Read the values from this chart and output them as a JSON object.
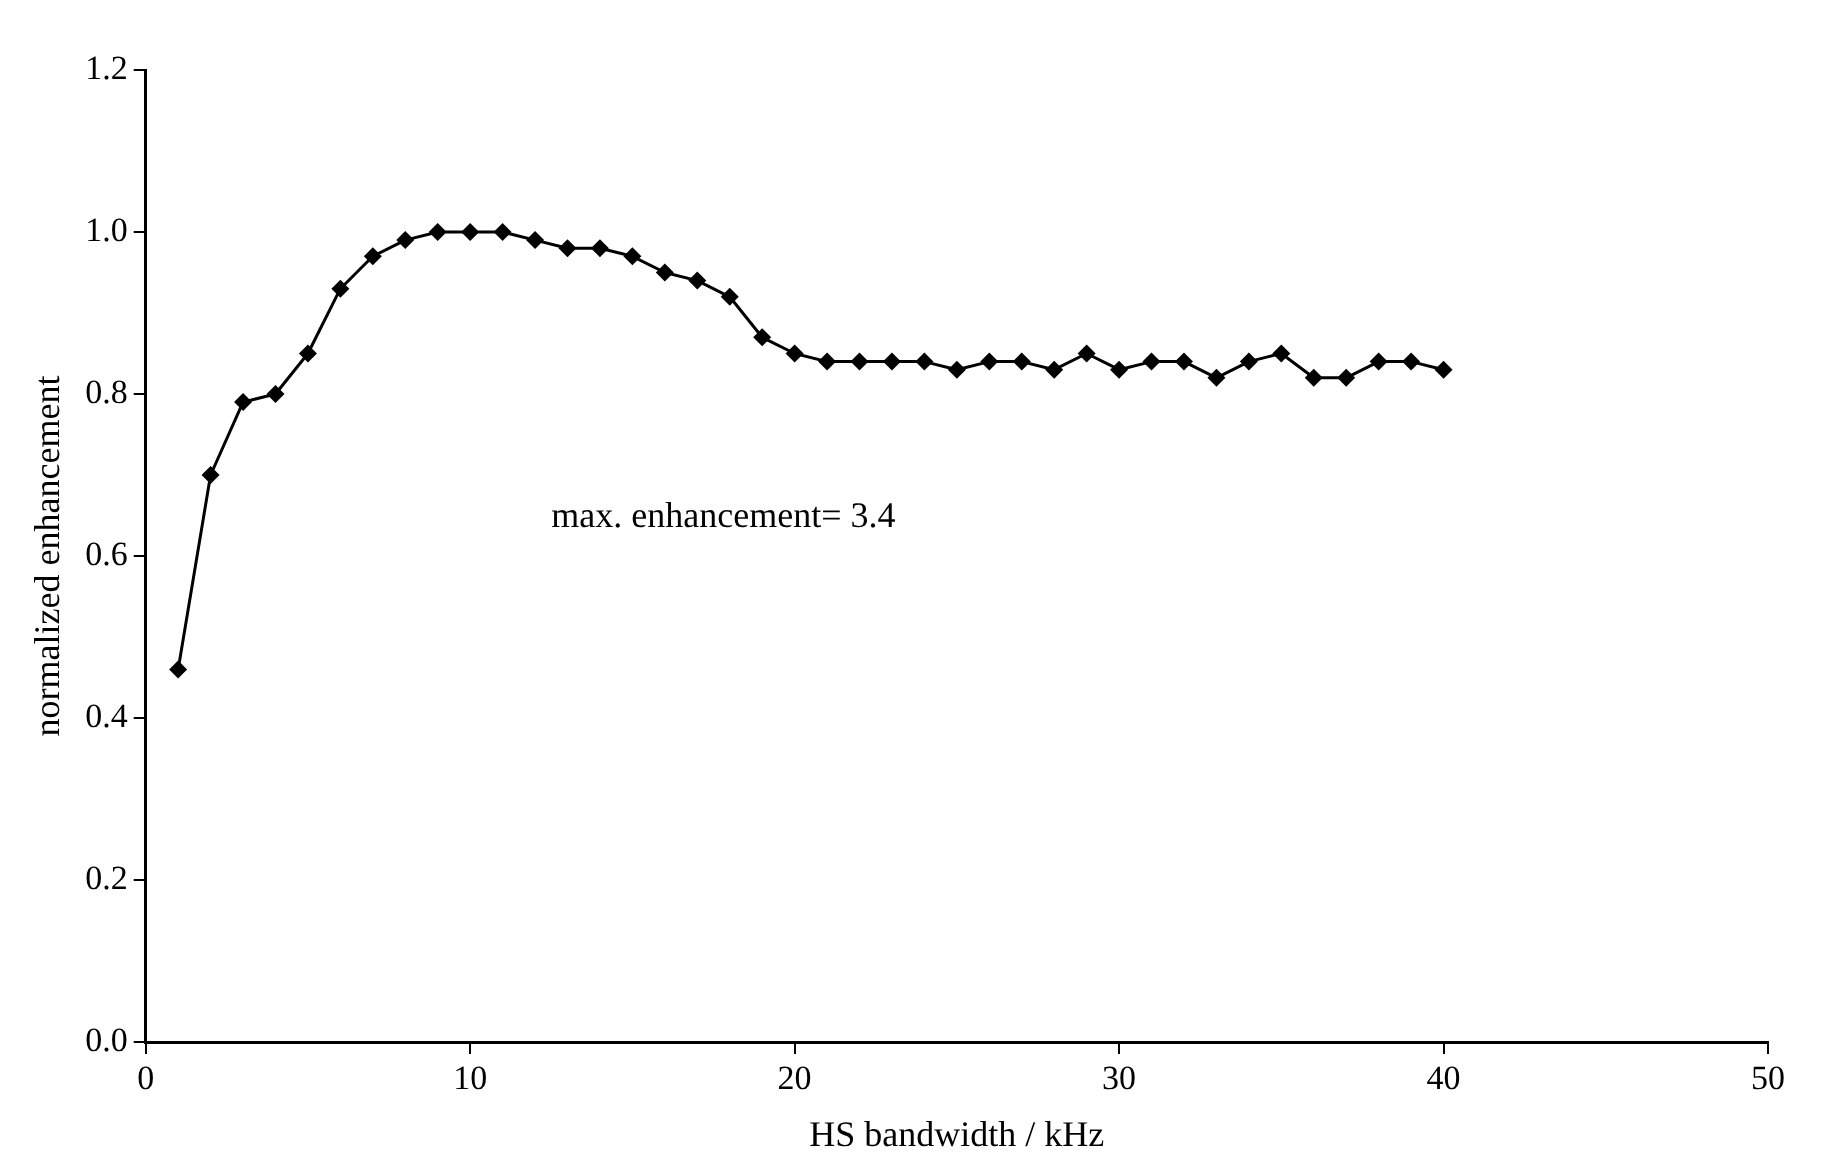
{
  "chart_data": {
    "type": "line",
    "xlabel": "HS bandwidth / kHz",
    "ylabel": "normalized enhancement",
    "x": [
      1,
      2,
      3,
      4,
      5,
      6,
      7,
      8,
      9,
      10,
      11,
      12,
      13,
      14,
      15,
      16,
      17,
      18,
      19,
      20,
      21,
      22,
      23,
      24,
      25,
      26,
      27,
      28,
      29,
      30,
      31,
      32,
      33,
      34,
      35,
      36,
      37,
      38,
      39,
      40
    ],
    "series": [
      {
        "color": "#000000",
        "values": [
          0.46,
          0.7,
          0.79,
          0.8,
          0.85,
          0.93,
          0.97,
          0.99,
          1.0,
          1.0,
          1.0,
          0.99,
          0.98,
          0.98,
          0.97,
          0.95,
          0.94,
          0.92,
          0.87,
          0.85,
          0.84,
          0.84,
          0.84,
          0.84,
          0.83,
          0.84,
          0.84,
          0.83,
          0.85,
          0.83,
          0.84,
          0.84,
          0.82,
          0.84,
          0.85,
          0.82,
          0.82,
          0.84,
          0.84,
          0.83
        ]
      }
    ],
    "xlim": [
      0,
      50
    ],
    "xticks": [
      0,
      10,
      20,
      30,
      40,
      50
    ],
    "ylim": [
      0,
      1.2
    ],
    "yticks": [
      {
        "value": 0,
        "label": "0.0"
      },
      {
        "value": 0.2,
        "label": "0.2"
      },
      {
        "value": 0.4,
        "label": "0.4"
      },
      {
        "value": 0.6,
        "label": "0.6"
      },
      {
        "value": 0.8,
        "label": "0.8"
      },
      {
        "value": 1,
        "label": "1.0"
      },
      {
        "value": 1.2,
        "label": "1.2"
      }
    ],
    "annotations": [
      "max. enhancement= 3.4"
    ],
    "marker": "diamond",
    "line_style": "solid",
    "grid": false,
    "legend": false
  }
}
